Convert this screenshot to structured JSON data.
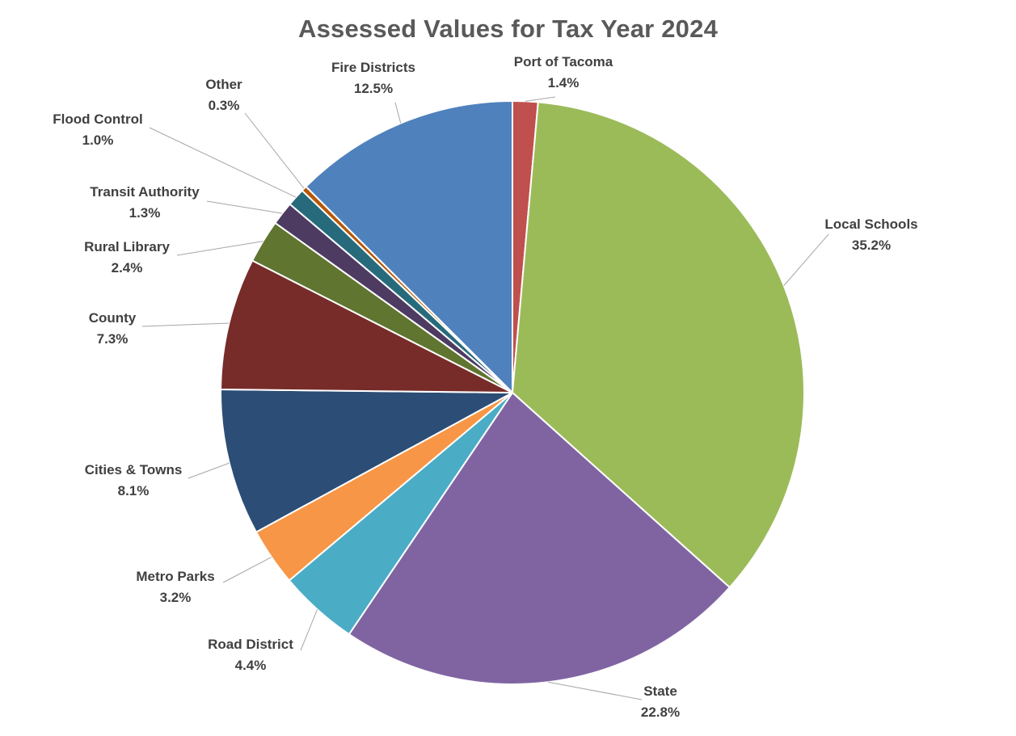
{
  "chart_data": {
    "type": "pie",
    "title": "Assessed Values for Tax Year 2024",
    "slices": [
      {
        "name": "Port of Tacoma",
        "value": 1.4,
        "label": "1.4%",
        "color": "#C0504D"
      },
      {
        "name": "Local Schools",
        "value": 35.2,
        "label": "35.2%",
        "color": "#9BBB59"
      },
      {
        "name": "State",
        "value": 22.8,
        "label": "22.8%",
        "color": "#8064A2"
      },
      {
        "name": "Road District",
        "value": 4.4,
        "label": "4.4%",
        "color": "#4BACC6"
      },
      {
        "name": "Metro Parks",
        "value": 3.2,
        "label": "3.2%",
        "color": "#F79646"
      },
      {
        "name": "Cities & Towns",
        "value": 8.1,
        "label": "8.1%",
        "color": "#2C4D75"
      },
      {
        "name": "County",
        "value": 7.3,
        "label": "7.3%",
        "color": "#772C2A"
      },
      {
        "name": "Rural Library",
        "value": 2.4,
        "label": "2.4%",
        "color": "#5F7530"
      },
      {
        "name": "Transit Authority",
        "value": 1.3,
        "label": "1.3%",
        "color": "#4D3B62"
      },
      {
        "name": "Flood Control",
        "value": 1.0,
        "label": "1.0%",
        "color": "#276A7C"
      },
      {
        "name": "Other",
        "value": 0.3,
        "label": "0.3%",
        "color": "#B65708"
      },
      {
        "name": "Fire Districts",
        "value": 12.5,
        "label": "12.5%",
        "color": "#4F81BD"
      }
    ],
    "start_angle": "12 o'clock",
    "direction": "clockwise",
    "legend": "none (leader-line data labels)"
  }
}
